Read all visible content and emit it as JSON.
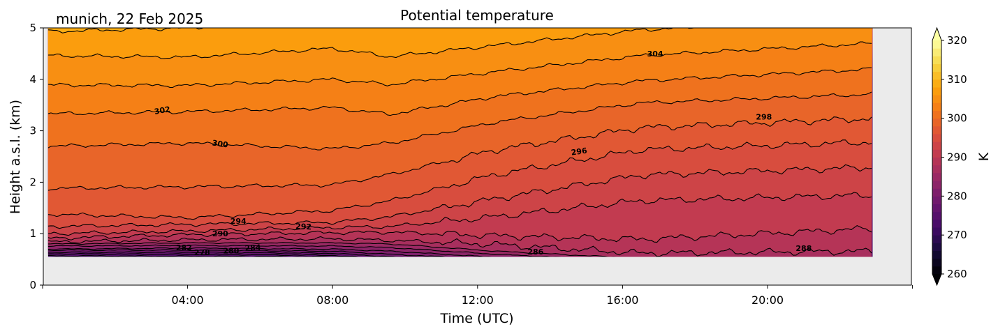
{
  "chart_data": {
    "type": "heatmap",
    "subtype": "filled-contour",
    "title": "Potential temperature",
    "subtitle": "munich, 22 Feb 2025",
    "xlabel": "Time (UTC)",
    "ylabel": "Height a.s.l. (km)",
    "xlim_hours": [
      0,
      24
    ],
    "ylim": [
      0,
      5
    ],
    "xticks": [
      {
        "value": 0,
        "label": ""
      },
      {
        "value": 4,
        "label": "04:00"
      },
      {
        "value": 8,
        "label": "08:00"
      },
      {
        "value": 12,
        "label": "12:00"
      },
      {
        "value": 16,
        "label": "16:00"
      },
      {
        "value": 20,
        "label": "20:00"
      },
      {
        "value": 24,
        "label": ""
      }
    ],
    "yticks": [
      {
        "value": 0,
        "label": "0"
      },
      {
        "value": 1,
        "label": "1"
      },
      {
        "value": 2,
        "label": "2"
      },
      {
        "value": 3,
        "label": "3"
      },
      {
        "value": 4,
        "label": "4"
      },
      {
        "value": 5,
        "label": "5"
      }
    ],
    "data_extent": {
      "t": [
        0.15,
        22.9
      ],
      "z": [
        0.55,
        5
      ]
    },
    "background_color": "#ebebeb",
    "colormap": "inferno",
    "contour_step": 2,
    "contour_times": [
      0.2,
      4,
      8,
      9.6,
      12.5,
      16.5,
      22.9
    ],
    "contours": [
      {
        "level": 274,
        "heights": [
          0.57,
          0.56,
          0.55,
          0.45,
          0.4,
          0.4,
          0.4
        ]
      },
      {
        "level": 276,
        "heights": [
          0.61,
          0.6,
          0.58,
          0.5,
          0.42,
          0.4,
          0.4
        ]
      },
      {
        "level": 278,
        "heights": [
          0.64,
          0.64,
          0.62,
          0.55,
          0.45,
          0.4,
          0.4
        ]
      },
      {
        "level": 280,
        "heights": [
          0.68,
          0.68,
          0.66,
          0.6,
          0.5,
          0.42,
          0.42
        ]
      },
      {
        "level": 282,
        "heights": [
          0.7,
          0.72,
          0.7,
          0.66,
          0.54,
          0.44,
          0.44
        ]
      },
      {
        "level": 284,
        "heights": [
          0.76,
          0.77,
          0.76,
          0.73,
          0.6,
          0.46,
          0.46
        ]
      },
      {
        "level": 286,
        "heights": [
          0.8,
          0.82,
          0.82,
          0.8,
          0.66,
          0.52,
          0.52
        ]
      },
      {
        "level": 288,
        "heights": [
          0.84,
          0.88,
          0.9,
          0.87,
          0.79,
          0.62,
          0.66
        ]
      },
      {
        "level": 290,
        "heights": [
          0.91,
          0.98,
          1.02,
          1.03,
          0.96,
          0.89,
          1.1
        ]
      },
      {
        "level": 292,
        "heights": [
          1.0,
          1.05,
          1.12,
          1.14,
          1.33,
          1.64,
          1.75
        ]
      },
      {
        "level": 294,
        "heights": [
          1.14,
          1.18,
          1.22,
          1.33,
          1.68,
          2.14,
          2.29
        ]
      },
      {
        "level": 296,
        "heights": [
          1.38,
          1.31,
          1.45,
          1.64,
          2.15,
          2.63,
          2.78
        ]
      },
      {
        "level": 298,
        "heights": [
          1.88,
          1.91,
          1.95,
          2.15,
          2.63,
          3.06,
          3.24
        ]
      },
      {
        "level": 300,
        "heights": [
          2.7,
          2.76,
          2.65,
          2.76,
          3.17,
          3.54,
          3.71
        ]
      },
      {
        "level": 302,
        "heights": [
          3.33,
          3.37,
          3.45,
          3.32,
          3.67,
          3.97,
          4.2
        ]
      },
      {
        "level": 304,
        "heights": [
          3.89,
          3.88,
          4.0,
          3.9,
          4.15,
          4.46,
          4.7
        ]
      },
      {
        "level": 306,
        "heights": [
          4.46,
          4.43,
          4.6,
          4.44,
          4.66,
          4.96,
          5.2
        ]
      },
      {
        "level": 308,
        "heights": [
          4.93,
          5.0,
          5.2,
          5.3,
          5.5,
          5.7,
          5.8
        ]
      }
    ],
    "contour_labels": [
      {
        "text": "304",
        "t": 16.9,
        "z": 4.5,
        "angle": 0
      },
      {
        "text": "302",
        "t": 3.3,
        "z": 3.4,
        "angle": -10
      },
      {
        "text": "300",
        "t": 4.9,
        "z": 2.75,
        "angle": 8
      },
      {
        "text": "298",
        "t": 19.9,
        "z": 3.27,
        "angle": 0
      },
      {
        "text": "296",
        "t": 14.8,
        "z": 2.6,
        "angle": -8
      },
      {
        "text": "294",
        "t": 5.4,
        "z": 1.25,
        "angle": 0
      },
      {
        "text": "292",
        "t": 7.2,
        "z": 1.14,
        "angle": 3
      },
      {
        "text": "290",
        "t": 4.9,
        "z": 1.0,
        "angle": 0
      },
      {
        "text": "288",
        "t": 21.0,
        "z": 0.72,
        "angle": 0
      },
      {
        "text": "286",
        "t": 13.6,
        "z": 0.65,
        "angle": 0
      },
      {
        "text": "284",
        "t": 5.8,
        "z": 0.73,
        "angle": -4
      },
      {
        "text": "282",
        "t": 3.9,
        "z": 0.73,
        "angle": 0
      },
      {
        "text": "280",
        "t": 5.2,
        "z": 0.67,
        "angle": 0
      },
      {
        "text": "278",
        "t": 4.4,
        "z": 0.64,
        "angle": 0
      }
    ],
    "colorbar": {
      "label": "K",
      "range": [
        260,
        320
      ],
      "extend": "both",
      "ticks": [
        {
          "value": 260,
          "label": "260"
        },
        {
          "value": 270,
          "label": "270"
        },
        {
          "value": 280,
          "label": "280"
        },
        {
          "value": 290,
          "label": "290"
        },
        {
          "value": 300,
          "label": "300"
        },
        {
          "value": 310,
          "label": "310"
        },
        {
          "value": 320,
          "label": "320"
        }
      ]
    }
  }
}
